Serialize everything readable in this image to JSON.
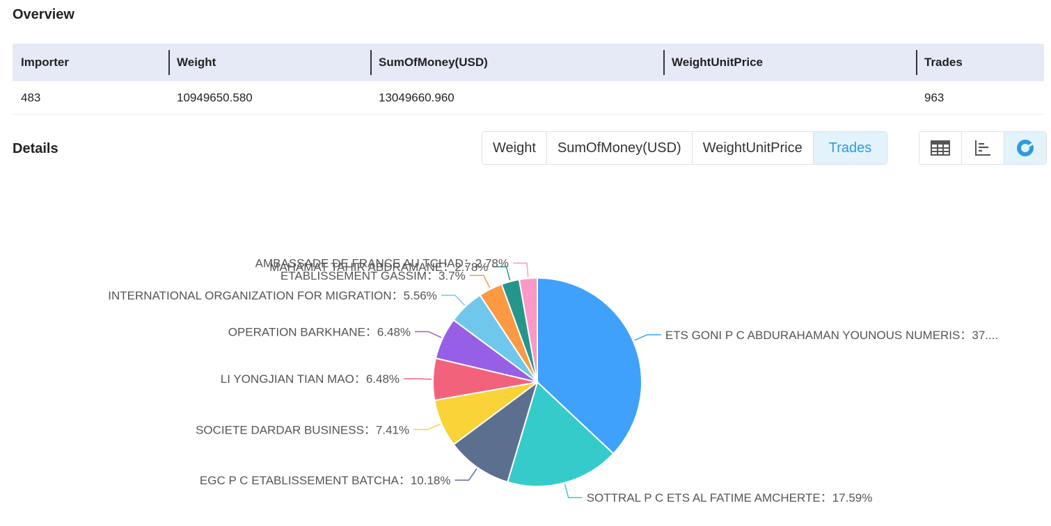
{
  "overview": {
    "title": "Overview",
    "columns": [
      "Importer",
      "Weight",
      "SumOfMoney(USD)",
      "WeightUnitPrice",
      "Trades"
    ],
    "row": [
      "483",
      "10949650.580",
      "13049660.960",
      "",
      "963"
    ]
  },
  "details": {
    "title": "Details",
    "metric_tabs": [
      "Weight",
      "SumOfMoney(USD)",
      "WeightUnitPrice",
      "Trades"
    ],
    "active_metric": "Trades",
    "view_icons": [
      "table-view-icon",
      "bar-chart-view-icon",
      "pie-chart-view-icon"
    ],
    "active_view": "pie-chart-view-icon"
  },
  "colors": {
    "header_bg": "#e6eaf6",
    "active_tab_bg": "#e3f3fc",
    "active_tab_text": "#2d9cdb"
  },
  "chart_data": {
    "type": "pie",
    "slices": [
      {
        "name": "ETS GONI P C ABDURAHAMAN YOUNOUS NUMERIS",
        "value": 37.0,
        "label": "ETS GONI P C ABDURAHAMAN YOUNOUS NUMERIS：37....",
        "color": "#3fa1fb"
      },
      {
        "name": "SOTTRAL P C ETS AL FATIME AMCHERTE",
        "value": 17.59,
        "label": "SOTTRAL P C ETS AL FATIME AMCHERTE：17.59%",
        "color": "#36cbcb"
      },
      {
        "name": "EGC P C ETABLISSEMENT BATCHA",
        "value": 10.18,
        "label": "EGC P C ETABLISSEMENT BATCHA：10.18%",
        "color": "#5d6f8e"
      },
      {
        "name": "SOCIETE DARDAR BUSINESS",
        "value": 7.41,
        "label": "SOCIETE DARDAR BUSINESS：7.41%",
        "color": "#f9d337"
      },
      {
        "name": "LI YONGJIAN TIAN MAO",
        "value": 6.48,
        "label": "LI YONGJIAN TIAN MAO：6.48%",
        "color": "#f2637b"
      },
      {
        "name": "OPERATION BARKHANE",
        "value": 6.48,
        "label": "OPERATION BARKHANE：6.48%",
        "color": "#975fe5"
      },
      {
        "name": "INTERNATIONAL ORGANIZATION FOR MIGRATION",
        "value": 5.56,
        "label": "INTERNATIONAL ORGANIZATION FOR MIGRATION：5.56%",
        "color": "#6fc8ec"
      },
      {
        "name": "ETABLISSEMENT GASSIM",
        "value": 3.7,
        "label": "ETABLISSEMENT GASSIM：3.7%",
        "color": "#fb9a43"
      },
      {
        "name": "MAHAMAT TAHIR ABDRAMANE",
        "value": 2.78,
        "label": "MAHAMAT TAHIR ABDRAMANE：2.78%",
        "color": "#26968c"
      },
      {
        "name": "AMBASSADE DE FRANCE AU TCHAD",
        "value": 2.78,
        "label": "AMBASSADE DE FRANCE AU TCHAD：2.78%",
        "color": "#fb98c8"
      }
    ],
    "title": "",
    "legend": "none"
  }
}
